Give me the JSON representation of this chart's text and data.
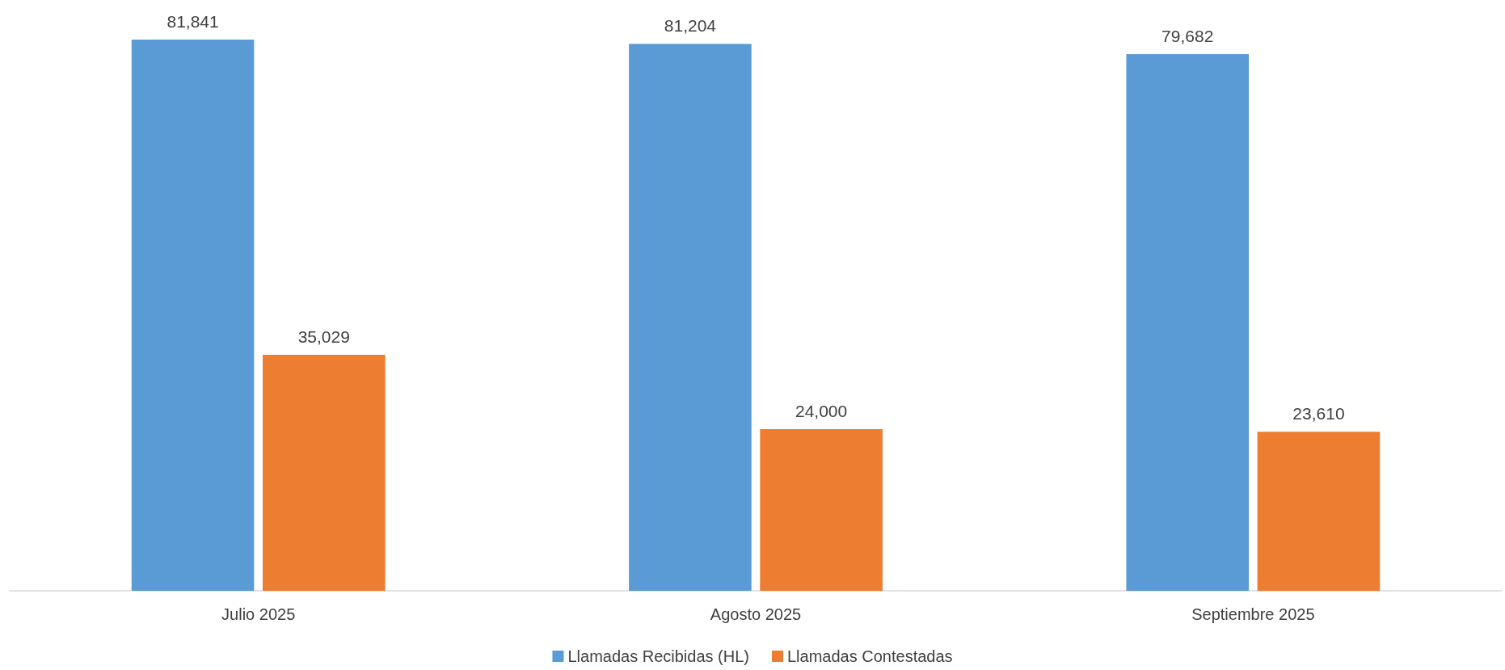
{
  "chart_data": {
    "type": "bar",
    "categories": [
      "Julio 2025",
      "Agosto 2025",
      "Septiembre 2025"
    ],
    "series": [
      {
        "name": "Llamadas Recibidas (HL)",
        "color": "#5b9bd5",
        "values": [
          81841,
          81204,
          79682
        ],
        "value_labels": [
          "81,841",
          "81,204",
          "79,682"
        ]
      },
      {
        "name": "Llamadas Contestadas",
        "color": "#ed7d31",
        "values": [
          35029,
          24000,
          23610
        ],
        "value_labels": [
          "35,029",
          "24,000",
          "23,610"
        ]
      }
    ],
    "legend": "bottom",
    "tick_labels": "x"
  }
}
